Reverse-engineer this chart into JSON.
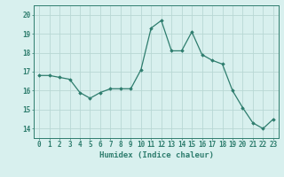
{
  "x": [
    0,
    1,
    2,
    3,
    4,
    5,
    6,
    7,
    8,
    9,
    10,
    11,
    12,
    13,
    14,
    15,
    16,
    17,
    18,
    19,
    20,
    21,
    22,
    23
  ],
  "y": [
    16.8,
    16.8,
    16.7,
    16.6,
    15.9,
    15.6,
    15.9,
    16.1,
    16.1,
    16.1,
    17.1,
    19.3,
    19.7,
    18.1,
    18.1,
    19.1,
    17.9,
    17.6,
    17.4,
    16.0,
    15.1,
    14.3,
    14.0,
    14.5
  ],
  "line_color": "#2e7d6e",
  "marker": "D",
  "marker_size": 1.8,
  "bg_color": "#d8f0ee",
  "grid_color": "#b8d8d4",
  "xlabel": "Humidex (Indice chaleur)",
  "xlabel_fontsize": 6.5,
  "tick_fontsize": 5.5,
  "ylim": [
    13.5,
    20.5
  ],
  "yticks": [
    14,
    15,
    16,
    17,
    18,
    19,
    20
  ],
  "xticks": [
    0,
    1,
    2,
    3,
    4,
    5,
    6,
    7,
    8,
    9,
    10,
    11,
    12,
    13,
    14,
    15,
    16,
    17,
    18,
    19,
    20,
    21,
    22,
    23
  ],
  "linewidth": 0.9
}
